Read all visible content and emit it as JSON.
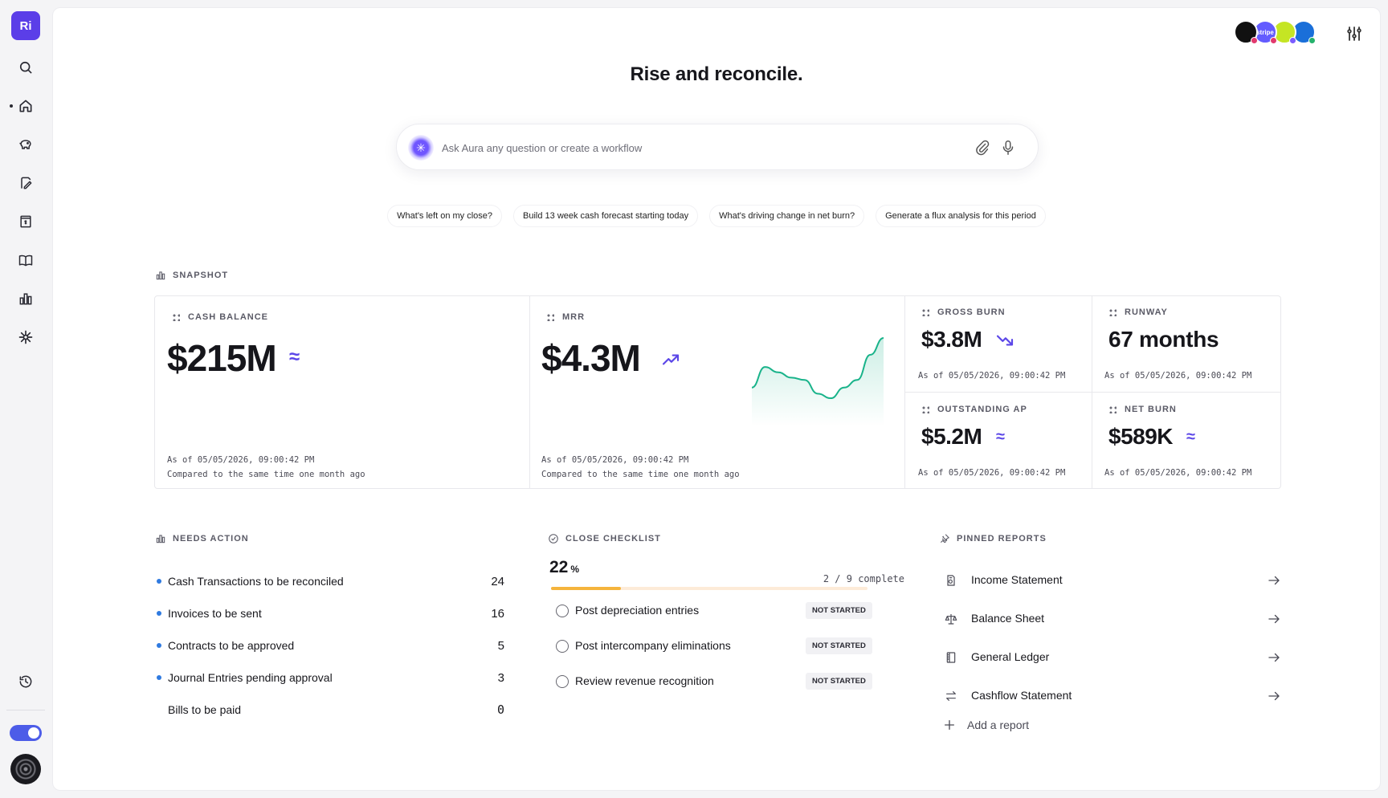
{
  "app": {
    "logo_text": "Ri"
  },
  "sidebar": {
    "items": [
      {
        "name": "search-icon"
      },
      {
        "name": "home-icon"
      },
      {
        "name": "piggy-bank-icon"
      },
      {
        "name": "invoice-edit-icon"
      },
      {
        "name": "receipt-icon"
      },
      {
        "name": "book-icon"
      },
      {
        "name": "bar-chart-icon"
      },
      {
        "name": "aura-sparkle-icon"
      }
    ],
    "bottom": {
      "history": "history-icon"
    }
  },
  "integrations": [
    {
      "name": "integration-1",
      "label": "",
      "bg": "#111111",
      "dot": "#e23a6e"
    },
    {
      "name": "integration-stripe",
      "label": "stripe",
      "bg": "#635bff",
      "dot": "#e23a6e"
    },
    {
      "name": "integration-3",
      "label": "",
      "bg": "#c5e524",
      "dot": "#7a5cff"
    },
    {
      "name": "integration-4",
      "label": "",
      "bg": "#1a6fd9",
      "dot": "#25b26c"
    }
  ],
  "hero": {
    "title": "Rise and reconcile."
  },
  "search": {
    "placeholder": "Ask Aura any question or create a workflow"
  },
  "suggestions": [
    "What's left on my close?",
    "Build 13 week cash forecast starting today",
    "What's driving change in net burn?",
    "Generate a flux analysis for this period"
  ],
  "snapshot": {
    "label": "SNAPSHOT",
    "cards": {
      "cash_balance": {
        "label": "CASH BALANCE",
        "value": "$215M",
        "trend": "≈",
        "asof": "As of 05/05/2026, 09:00:42 PM",
        "compare": "Compared to the same time one month ago"
      },
      "mrr": {
        "label": "MRR",
        "value": "$4.3M",
        "trend": "up",
        "asof": "As of 05/05/2026, 09:00:42 PM",
        "compare": "Compared to the same time one month ago",
        "sparkline": [
          0.35,
          0.62,
          0.55,
          0.48,
          0.45,
          0.27,
          0.21,
          0.35,
          0.45,
          0.78,
          1.0
        ]
      },
      "gross_burn": {
        "label": "GROSS BURN",
        "value": "$3.8M",
        "trend": "down",
        "asof": "As of 05/05/2026, 09:00:42 PM"
      },
      "runway": {
        "label": "RUNWAY",
        "value": "67 months",
        "asof": "As of 05/05/2026, 09:00:42 PM"
      },
      "outstanding_ap": {
        "label": "OUTSTANDING AP",
        "value": "$5.2M",
        "trend": "≈",
        "asof": "As of 05/05/2026, 09:00:42 PM"
      },
      "net_burn": {
        "label": "NET BURN",
        "value": "$589K",
        "trend": "≈",
        "asof": "As of 05/05/2026, 09:00:42 PM"
      }
    }
  },
  "needs_action": {
    "label": "NEEDS ACTION",
    "items": [
      {
        "label": "Cash Transactions to be reconciled",
        "count": "24",
        "dot": true
      },
      {
        "label": "Invoices to be sent",
        "count": "16",
        "dot": true
      },
      {
        "label": "Contracts to be approved",
        "count": "5",
        "dot": true
      },
      {
        "label": "Journal Entries pending approval",
        "count": "3",
        "dot": true
      },
      {
        "label": "Bills to be paid",
        "count": "0",
        "dot": false
      }
    ]
  },
  "close_checklist": {
    "label": "CLOSE CHECKLIST",
    "percent": "22",
    "percent_unit": "%",
    "progress": 0.22,
    "complete": "2 / 9 complete",
    "tasks": [
      {
        "label": "Post depreciation entries",
        "status": "NOT STARTED"
      },
      {
        "label": "Post intercompany eliminations",
        "status": "NOT STARTED"
      },
      {
        "label": "Review revenue recognition",
        "status": "NOT STARTED"
      }
    ]
  },
  "pinned_reports": {
    "label": "PINNED REPORTS",
    "items": [
      {
        "label": "Income Statement",
        "icon": "income-statement-icon"
      },
      {
        "label": "Balance Sheet",
        "icon": "scale-icon"
      },
      {
        "label": "General Ledger",
        "icon": "ledger-icon"
      },
      {
        "label": "Cashflow Statement",
        "icon": "transfer-arrows-icon"
      }
    ],
    "add_label": "Add a report"
  }
}
